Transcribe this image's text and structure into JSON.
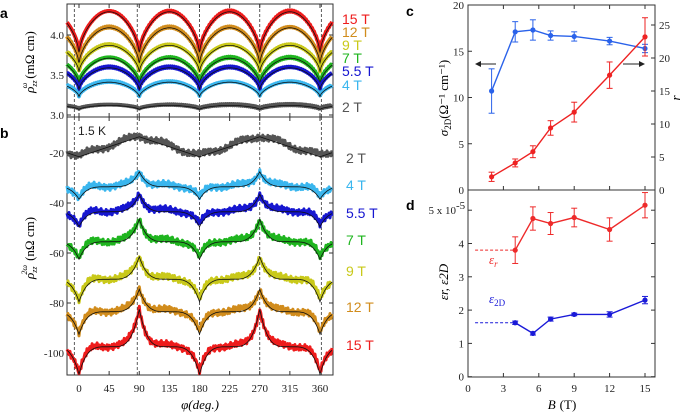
{
  "panel_letters": {
    "a": "a",
    "b": "b",
    "c": "c",
    "d": "d"
  },
  "annotations": {
    "temperature": "1.5 K"
  },
  "colors": {
    "15 T": "#ee1c1c",
    "12 T": "#d18c1c",
    "9 T": "#c9c91a",
    "7 T": "#1fb51f",
    "5.5 T": "#1616d0",
    "4 T": "#3ab6ee",
    "2 T": "#555555",
    "sigma": "#2a62ea",
    "r": "#ee2222",
    "eps_r": "#ee2a2a",
    "eps_2D": "#1a1ad8"
  },
  "chart_data": [
    {
      "id": "a",
      "type": "line",
      "ylabel_main": "ρ",
      "ylabel_sub": "zz",
      "ylabel_sup": "ω",
      "ylabel_unit": "(mΩ cm)",
      "ylim": [
        3.0,
        4.4
      ],
      "yticks": [
        "3.0",
        "3.5",
        "4.0"
      ],
      "ytick_values": [
        3.0,
        3.5,
        4.0
      ],
      "xlim": [
        -18,
        378
      ],
      "dashed_lines": [
        -7,
        87,
        180,
        270,
        362
      ],
      "x": [
        0,
        45,
        90,
        135,
        180,
        225,
        270,
        315,
        360
      ],
      "series": [
        {
          "name": "15 T",
          "values": [
            3.78,
            4.3,
            3.78,
            4.3,
            3.78,
            4.3,
            3.78,
            4.3,
            3.78
          ]
        },
        {
          "name": "12 T",
          "values": [
            3.65,
            4.1,
            3.65,
            4.1,
            3.65,
            4.1,
            3.65,
            4.1,
            3.65
          ]
        },
        {
          "name": "9 T",
          "values": [
            3.55,
            3.88,
            3.55,
            3.88,
            3.55,
            3.88,
            3.55,
            3.88,
            3.55
          ]
        },
        {
          "name": "7 T",
          "values": [
            3.4,
            3.72,
            3.4,
            3.72,
            3.4,
            3.72,
            3.4,
            3.72,
            3.4
          ]
        },
        {
          "name": "5.5 T",
          "values": [
            3.33,
            3.6,
            3.33,
            3.6,
            3.33,
            3.6,
            3.33,
            3.6,
            3.33
          ]
        },
        {
          "name": "4 T",
          "values": [
            3.24,
            3.42,
            3.24,
            3.42,
            3.24,
            3.42,
            3.24,
            3.42,
            3.24
          ]
        },
        {
          "name": "2 T",
          "values": [
            3.08,
            3.13,
            3.08,
            3.13,
            3.08,
            3.13,
            3.08,
            3.13,
            3.08
          ]
        }
      ]
    },
    {
      "id": "b",
      "type": "line",
      "ylabel_main": "ρ",
      "ylabel_sub": "zz",
      "ylabel_sup": "2ω",
      "ylabel_unit": "(nΩ cm)",
      "xlabel": "φ(deg.)",
      "ylim": [
        -109,
        -6
      ],
      "yticks": [
        "-20",
        "-40",
        "-60",
        "-80",
        "-100"
      ],
      "ytick_values": [
        -20,
        -40,
        -60,
        -80,
        -100
      ],
      "xlim": [
        -18,
        378
      ],
      "xticks": [
        "0",
        "45",
        "90",
        "135",
        "180",
        "225",
        "270",
        "315",
        "360"
      ],
      "xtick_values": [
        0,
        45,
        90,
        135,
        180,
        225,
        270,
        315,
        360
      ],
      "dashed_lines": [
        -7,
        87,
        180,
        270,
        362
      ],
      "x": [
        0,
        45,
        90,
        135,
        180,
        225,
        270,
        315,
        360
      ],
      "series": [
        {
          "name": "2 T",
          "values": [
            -21,
            -17,
            -13,
            -17,
            -21,
            -17,
            -13,
            -17,
            -21
          ]
        },
        {
          "name": "4 T",
          "values": [
            -38,
            -33,
            -27,
            -33,
            -38,
            -33,
            -27,
            -33,
            -38
          ]
        },
        {
          "name": "5.5 T",
          "values": [
            -49,
            -43,
            -36,
            -43,
            -49,
            -43,
            -36,
            -43,
            -49
          ]
        },
        {
          "name": "7 T",
          "values": [
            -62,
            -55,
            -46,
            -55,
            -62,
            -55,
            -46,
            -55,
            -62
          ]
        },
        {
          "name": "9 T",
          "values": [
            -79,
            -70,
            -61,
            -70,
            -79,
            -70,
            -61,
            -70,
            -79
          ]
        },
        {
          "name": "12 T",
          "values": [
            -92,
            -83,
            -74,
            -83,
            -92,
            -83,
            -74,
            -83,
            -92
          ]
        },
        {
          "name": "15 T",
          "values": [
            -108,
            -97,
            -82,
            -97,
            -108,
            -97,
            -82,
            -97,
            -108
          ]
        }
      ]
    },
    {
      "id": "c",
      "type": "line",
      "ylabel_left_main": "σ",
      "ylabel_left_sub": "2D",
      "ylabel_left_unit": "(Ω⁻¹ cm⁻¹)",
      "ylabel_right": "r",
      "xlim": [
        0,
        16
      ],
      "ylim_left": [
        0,
        20
      ],
      "ylim_right": [
        0,
        28
      ],
      "yticks_left": [
        "0",
        "5",
        "10",
        "15",
        "20"
      ],
      "ytick_left_values": [
        0,
        5,
        10,
        15,
        20
      ],
      "yticks_right": [
        "0",
        "5",
        "10",
        "15",
        "20",
        "25"
      ],
      "ytick_right_values": [
        0,
        5,
        10,
        15,
        20,
        25
      ],
      "series": [
        {
          "name": "σ2D",
          "axis": "left",
          "x": [
            2,
            4,
            5.5,
            7,
            9,
            12,
            15
          ],
          "values": [
            10.7,
            17.1,
            17.3,
            16.7,
            16.6,
            16.1,
            15.3
          ],
          "errors": [
            2.4,
            1.1,
            1.1,
            0.5,
            0.5,
            0.4,
            0.45
          ]
        },
        {
          "name": "r",
          "axis": "right",
          "x": [
            2,
            4,
            5.5,
            7,
            9,
            12,
            15
          ],
          "values": [
            2.0,
            4.1,
            5.8,
            9.4,
            11.8,
            17.4,
            23.2
          ],
          "errors": [
            0.7,
            0.6,
            0.9,
            1.1,
            1.5,
            2.0,
            2.9
          ]
        }
      ]
    },
    {
      "id": "d",
      "type": "line",
      "ylabel": "εr, ε2D",
      "xlabel_main": "B",
      "xlabel_unit": "(T)",
      "xlim": [
        0,
        16
      ],
      "ylim": [
        0,
        5.6
      ],
      "xticks": [
        "0",
        "3",
        "6",
        "9",
        "12",
        "15"
      ],
      "xtick_values": [
        0,
        3,
        6,
        9,
        12,
        15
      ],
      "yticks": [
        "0",
        "1",
        "2",
        "3",
        "4",
        "5 x 10"
      ],
      "ytick_values": [
        0,
        1,
        2,
        3,
        4,
        5
      ],
      "ytick_exponent": "-5",
      "series": [
        {
          "name": "ε",
          "name_sub": "r",
          "x": [
            4,
            5.5,
            7,
            9,
            12,
            15
          ],
          "values": [
            3.8,
            4.75,
            4.6,
            4.78,
            4.42,
            5.15
          ],
          "errors": [
            0.4,
            0.35,
            0.33,
            0.28,
            0.35,
            0.38
          ],
          "reference": 3.8
        },
        {
          "name": "ε",
          "name_sub": "2D",
          "x": [
            4,
            5.5,
            7,
            9,
            12,
            15
          ],
          "values": [
            1.62,
            1.3,
            1.73,
            1.87,
            1.87,
            2.3
          ],
          "errors": [
            0.05,
            0.05,
            0.06,
            0.04,
            0.08,
            0.11
          ],
          "reference": 1.62
        }
      ]
    }
  ]
}
